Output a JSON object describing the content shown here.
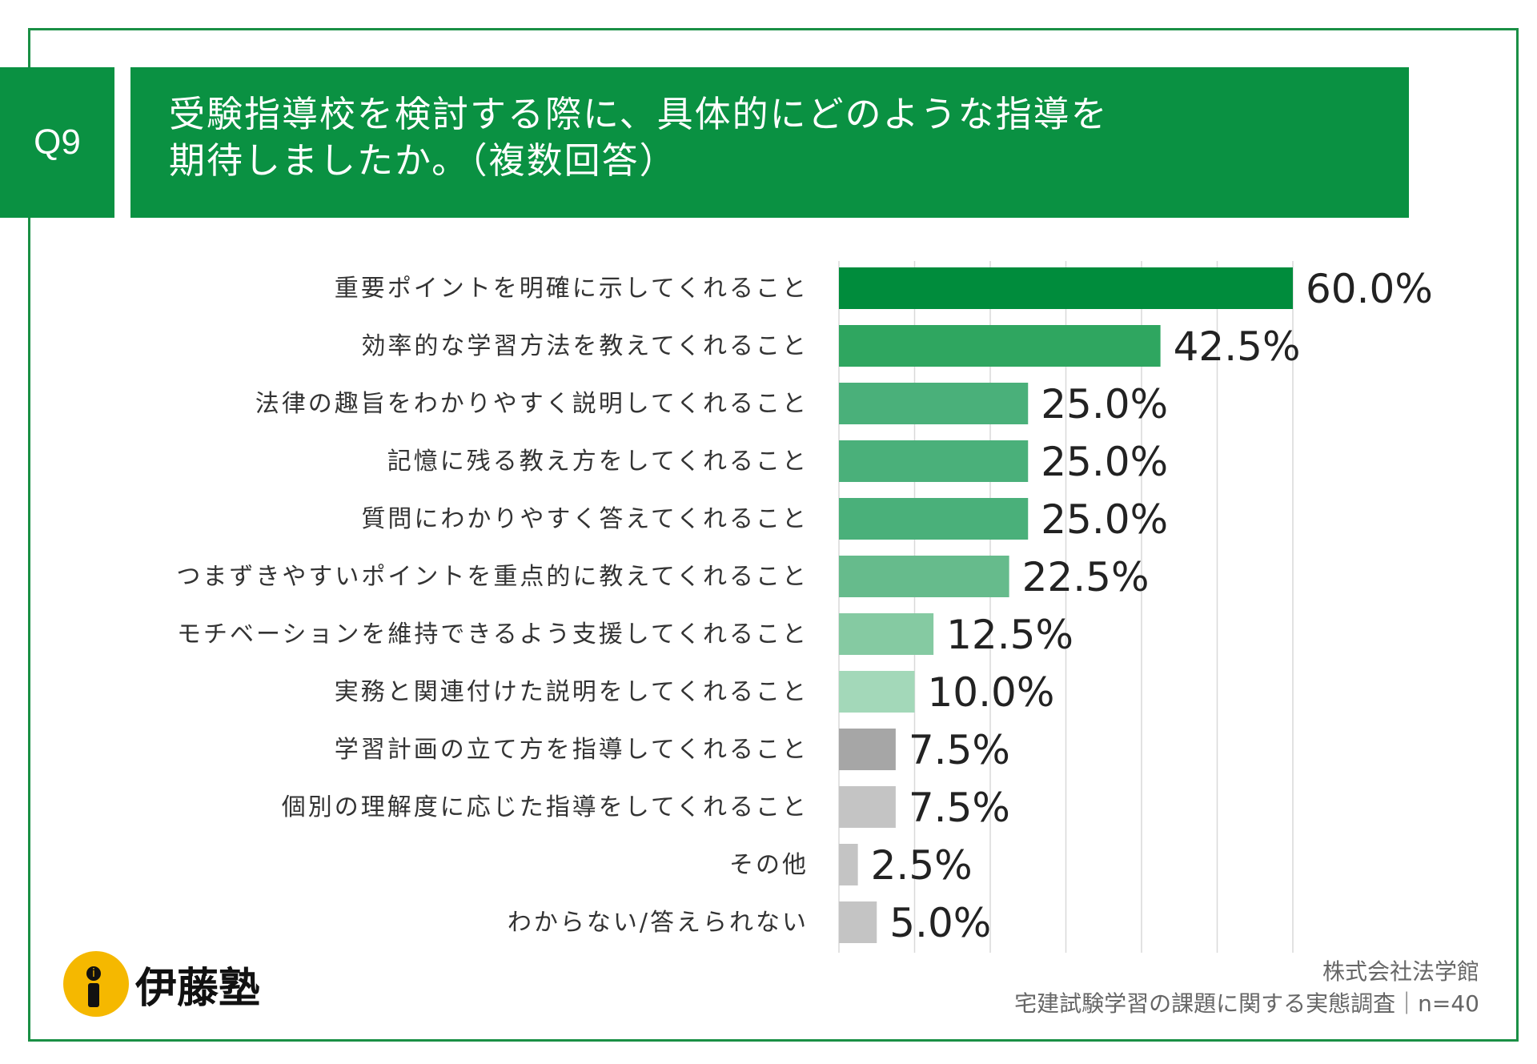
{
  "header": {
    "badge": "Q9",
    "title_line1": "受験指導校を検討する際に、具体的にどのような指導を",
    "title_line2": "期待しましたか。（複数回答）"
  },
  "colors": {
    "brand_green": "#0a9142",
    "frame": "#1a8f45",
    "gray_dark": "#a6a6a6",
    "gray_light": "#c4c4c4"
  },
  "chart_data": {
    "type": "bar",
    "orientation": "horizontal",
    "categories": [
      "重要ポイントを明確に示してくれること",
      "効率的な学習方法を教えてくれること",
      "法律の趣旨をわかりやすく説明してくれること",
      "記憶に残る教え方をしてくれること",
      "質問にわかりやすく答えてくれること",
      "つまずきやすいポイントを重点的に教えてくれること",
      "モチベーションを維持できるよう支援してくれること",
      "実務と関連付けた説明をしてくれること",
      "学習計画の立て方を指導してくれること",
      "個別の理解度に応じた指導をしてくれること",
      "その他",
      "わからない/答えられない"
    ],
    "values": [
      60.0,
      42.5,
      25.0,
      25.0,
      25.0,
      22.5,
      12.5,
      10.0,
      7.5,
      7.5,
      2.5,
      5.0
    ],
    "value_labels": [
      "60.0%",
      "42.5%",
      "25.0%",
      "25.0%",
      "25.0%",
      "22.5%",
      "12.5%",
      "10.0%",
      "7.5%",
      "7.5%",
      "2.5%",
      "5.0%"
    ],
    "bar_colors": [
      "#008c3c",
      "#2fa660",
      "#4ab07a",
      "#4ab07a",
      "#4ab07a",
      "#66bb8c",
      "#85caa2",
      "#a3d8b9",
      "#a6a6a6",
      "#c4c4c4",
      "#c4c4c4",
      "#c4c4c4"
    ],
    "xlim": [
      0,
      60
    ],
    "grid": true,
    "title": "",
    "xlabel": "",
    "ylabel": ""
  },
  "logo": {
    "text": "伊藤塾",
    "mark_letter": "i"
  },
  "footer": {
    "company": "株式会社法学館",
    "survey": "宅建試験学習の課題に関する実態調査｜n=40"
  }
}
